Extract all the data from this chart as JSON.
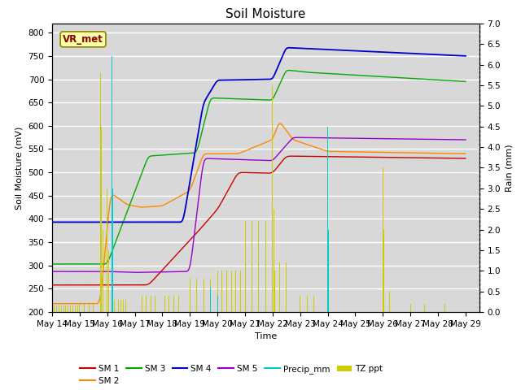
{
  "title": "Soil Moisture",
  "xlabel": "Time",
  "ylabel_left": "Soil Moisture (mV)",
  "ylabel_right": "Rain (mm)",
  "ylim_left": [
    200,
    820
  ],
  "ylim_right": [
    0.0,
    7.0
  ],
  "yticks_left": [
    200,
    250,
    300,
    350,
    400,
    450,
    500,
    550,
    600,
    650,
    700,
    750,
    800
  ],
  "yticks_right": [
    0.0,
    0.5,
    1.0,
    1.5,
    2.0,
    2.5,
    3.0,
    3.5,
    4.0,
    4.5,
    5.0,
    5.5,
    6.0,
    6.5,
    7.0
  ],
  "xtick_labels": [
    "May 14",
    "May 15",
    "May 16",
    "May 17",
    "May 18",
    "May 19",
    "May 20",
    "May 21",
    "May 22",
    "May 23",
    "May 24",
    "May 25",
    "May 26",
    "May 27",
    "May 28",
    "May 29"
  ],
  "colors": {
    "SM1": "#cc0000",
    "SM2": "#ff8800",
    "SM3": "#00aa00",
    "SM4": "#0000cc",
    "SM5": "#9900cc",
    "Precip_mm": "#00cccc",
    "TZ_ppt": "#cccc00"
  },
  "annotation_text": "VR_met",
  "background_color": "#d8d8d8",
  "grid_color": "#ffffff",
  "title_fontsize": 11,
  "label_fontsize": 8,
  "tick_fontsize": 7.5
}
